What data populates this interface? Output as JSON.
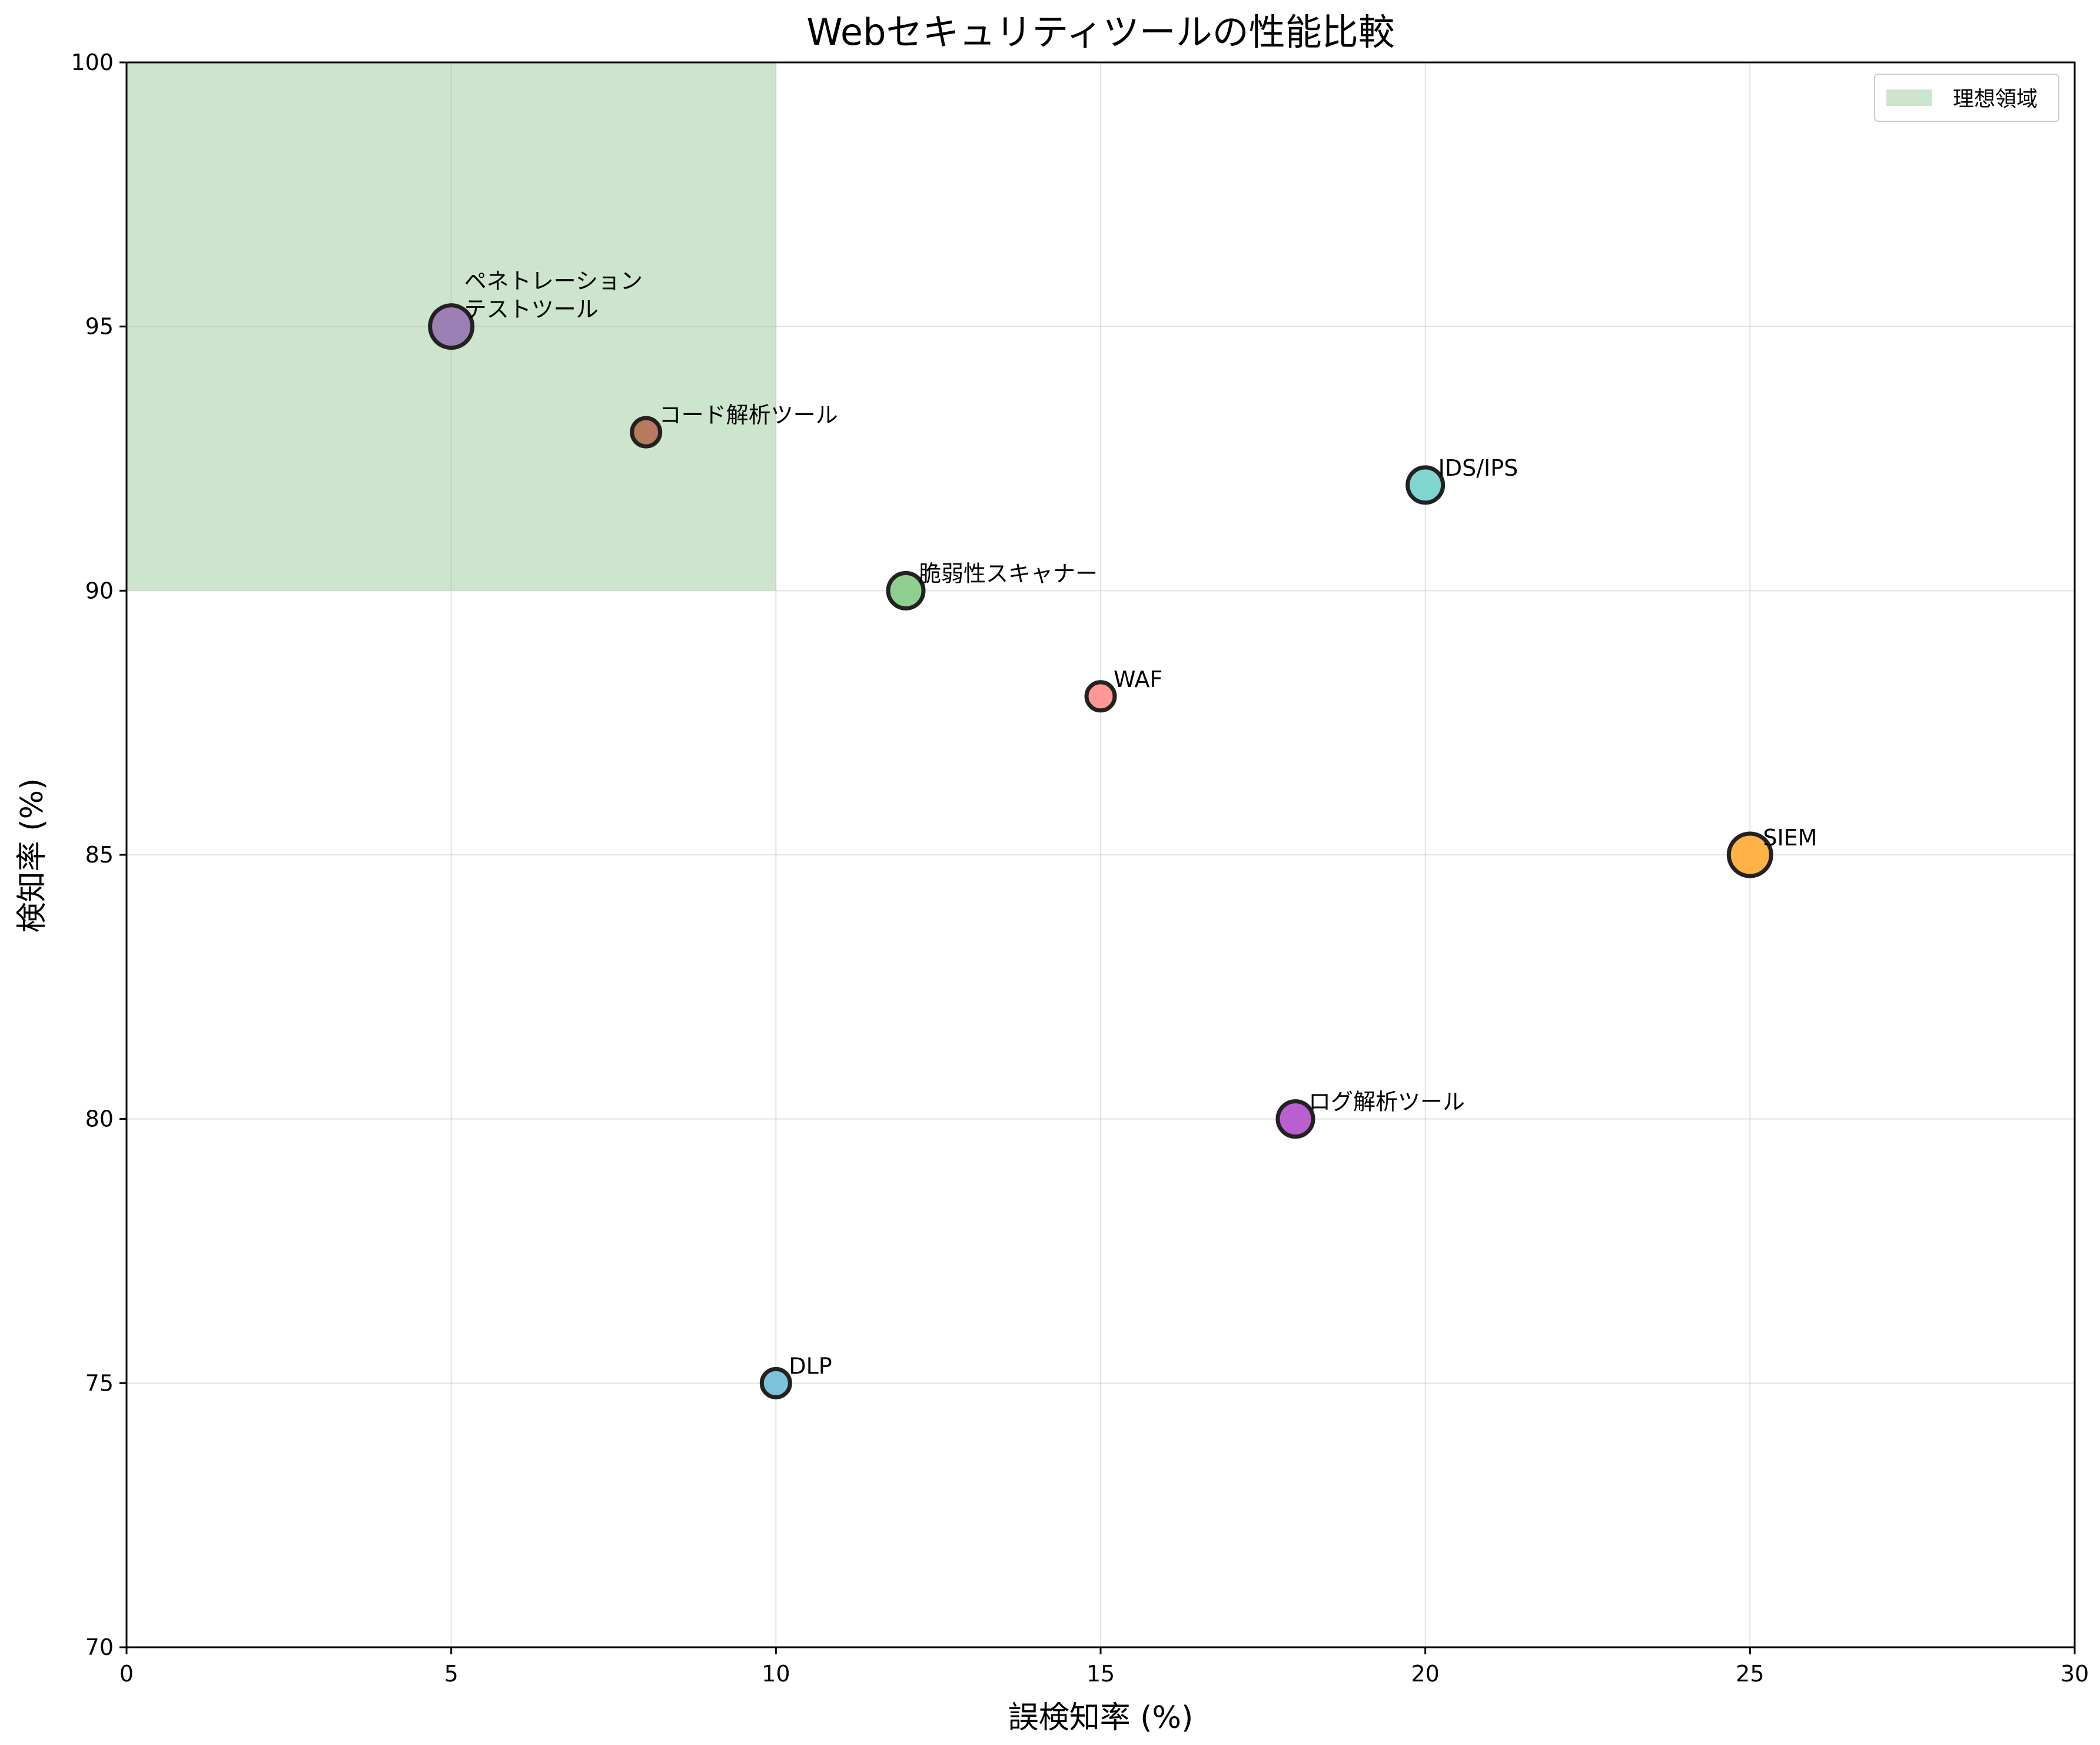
{
  "chart_data": {
    "type": "scatter",
    "title": "Webセキュリティツールの性能比較",
    "xlabel": "誤検知率 (%)",
    "ylabel": "検知率 (%)",
    "xlim": [
      0,
      30
    ],
    "ylim": [
      70,
      100
    ],
    "xticks": [
      0,
      5,
      10,
      15,
      20,
      25,
      30
    ],
    "yticks": [
      70,
      75,
      80,
      85,
      90,
      95,
      100
    ],
    "grid": true,
    "legend_position": "top-right",
    "ideal_region": {
      "label": "理想領域",
      "x": [
        0,
        10
      ],
      "y": [
        90,
        100
      ],
      "color": "#cde5cd"
    },
    "points": [
      {
        "label_lines": [
          "WAF"
        ],
        "x": 15,
        "y": 88,
        "color": "#ff9896"
      },
      {
        "label_lines": [
          "IDS/IPS"
        ],
        "x": 20,
        "y": 92,
        "color": "#7fd6ce"
      },
      {
        "label_lines": [
          "SIEM"
        ],
        "x": 25,
        "y": 85,
        "color": "#ffb347"
      },
      {
        "label_lines": [
          "DLP"
        ],
        "x": 10,
        "y": 75,
        "color": "#7ec3dc"
      },
      {
        "label_lines": [
          "脆弱性スキャナー"
        ],
        "x": 12,
        "y": 90,
        "color": "#8fce8f"
      },
      {
        "label_lines": [
          "ペネトレーション",
          "テストツール"
        ],
        "x": 5,
        "y": 95,
        "color": "#9b7fb5"
      },
      {
        "label_lines": [
          "コード解析ツール"
        ],
        "x": 8,
        "y": 93,
        "color": "#b87a5e"
      },
      {
        "label_lines": [
          "ログ解析ツール"
        ],
        "x": 18,
        "y": 80,
        "color": "#b95fcf"
      }
    ]
  }
}
